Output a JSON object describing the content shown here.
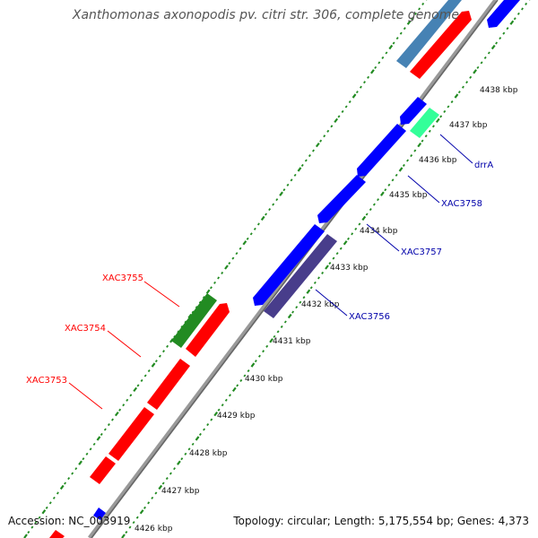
{
  "title": "Xanthomonas axonopodis pv. citri str. 306, complete genome",
  "footer": {
    "accession": "Accession: NC_003919",
    "summary": "Topology: circular; Length: 5,175,554 bp; Genes: 4,373"
  },
  "colors": {
    "gene_forward": "#ff0000",
    "gene_reverse": "#0000ff",
    "gene_green": "#228b22",
    "gene_steelblue": "#4682b4",
    "gene_darkslate": "#483d8b",
    "gene_aqua": "#33ff99",
    "label_forward": "#ff0000",
    "label_reverse": "#0000aa",
    "backbone": "#999999",
    "ticks": "#228b22",
    "tick_label": "#111111"
  },
  "scale_ticks": [
    {
      "label": "4426 kbp",
      "kbp": 4426
    },
    {
      "label": "4427 kbp",
      "kbp": 4427
    },
    {
      "label": "4428 kbp",
      "kbp": 4428
    },
    {
      "label": "4429 kbp",
      "kbp": 4429
    },
    {
      "label": "4430 kbp",
      "kbp": 4430
    },
    {
      "label": "4431 kbp",
      "kbp": 4431
    },
    {
      "label": "4432 kbp",
      "kbp": 4432
    },
    {
      "label": "4433 kbp",
      "kbp": 4433
    },
    {
      "label": "4434 kbp",
      "kbp": 4434
    },
    {
      "label": "4435 kbp",
      "kbp": 4435
    },
    {
      "label": "4436 kbp",
      "kbp": 4436
    },
    {
      "label": "4437 kbp",
      "kbp": 4437
    },
    {
      "label": "4438 kbp",
      "kbp": 4438
    }
  ],
  "gene_labels": [
    {
      "name": "XAC3755",
      "strand": "forward"
    },
    {
      "name": "XAC3754",
      "strand": "forward"
    },
    {
      "name": "XAC3753",
      "strand": "forward"
    },
    {
      "name": "drrA",
      "strand": "reverse"
    },
    {
      "name": "XAC3758",
      "strand": "reverse"
    },
    {
      "name": "XAC3757",
      "strand": "reverse"
    },
    {
      "name": "XAC3756",
      "strand": "reverse"
    }
  ]
}
